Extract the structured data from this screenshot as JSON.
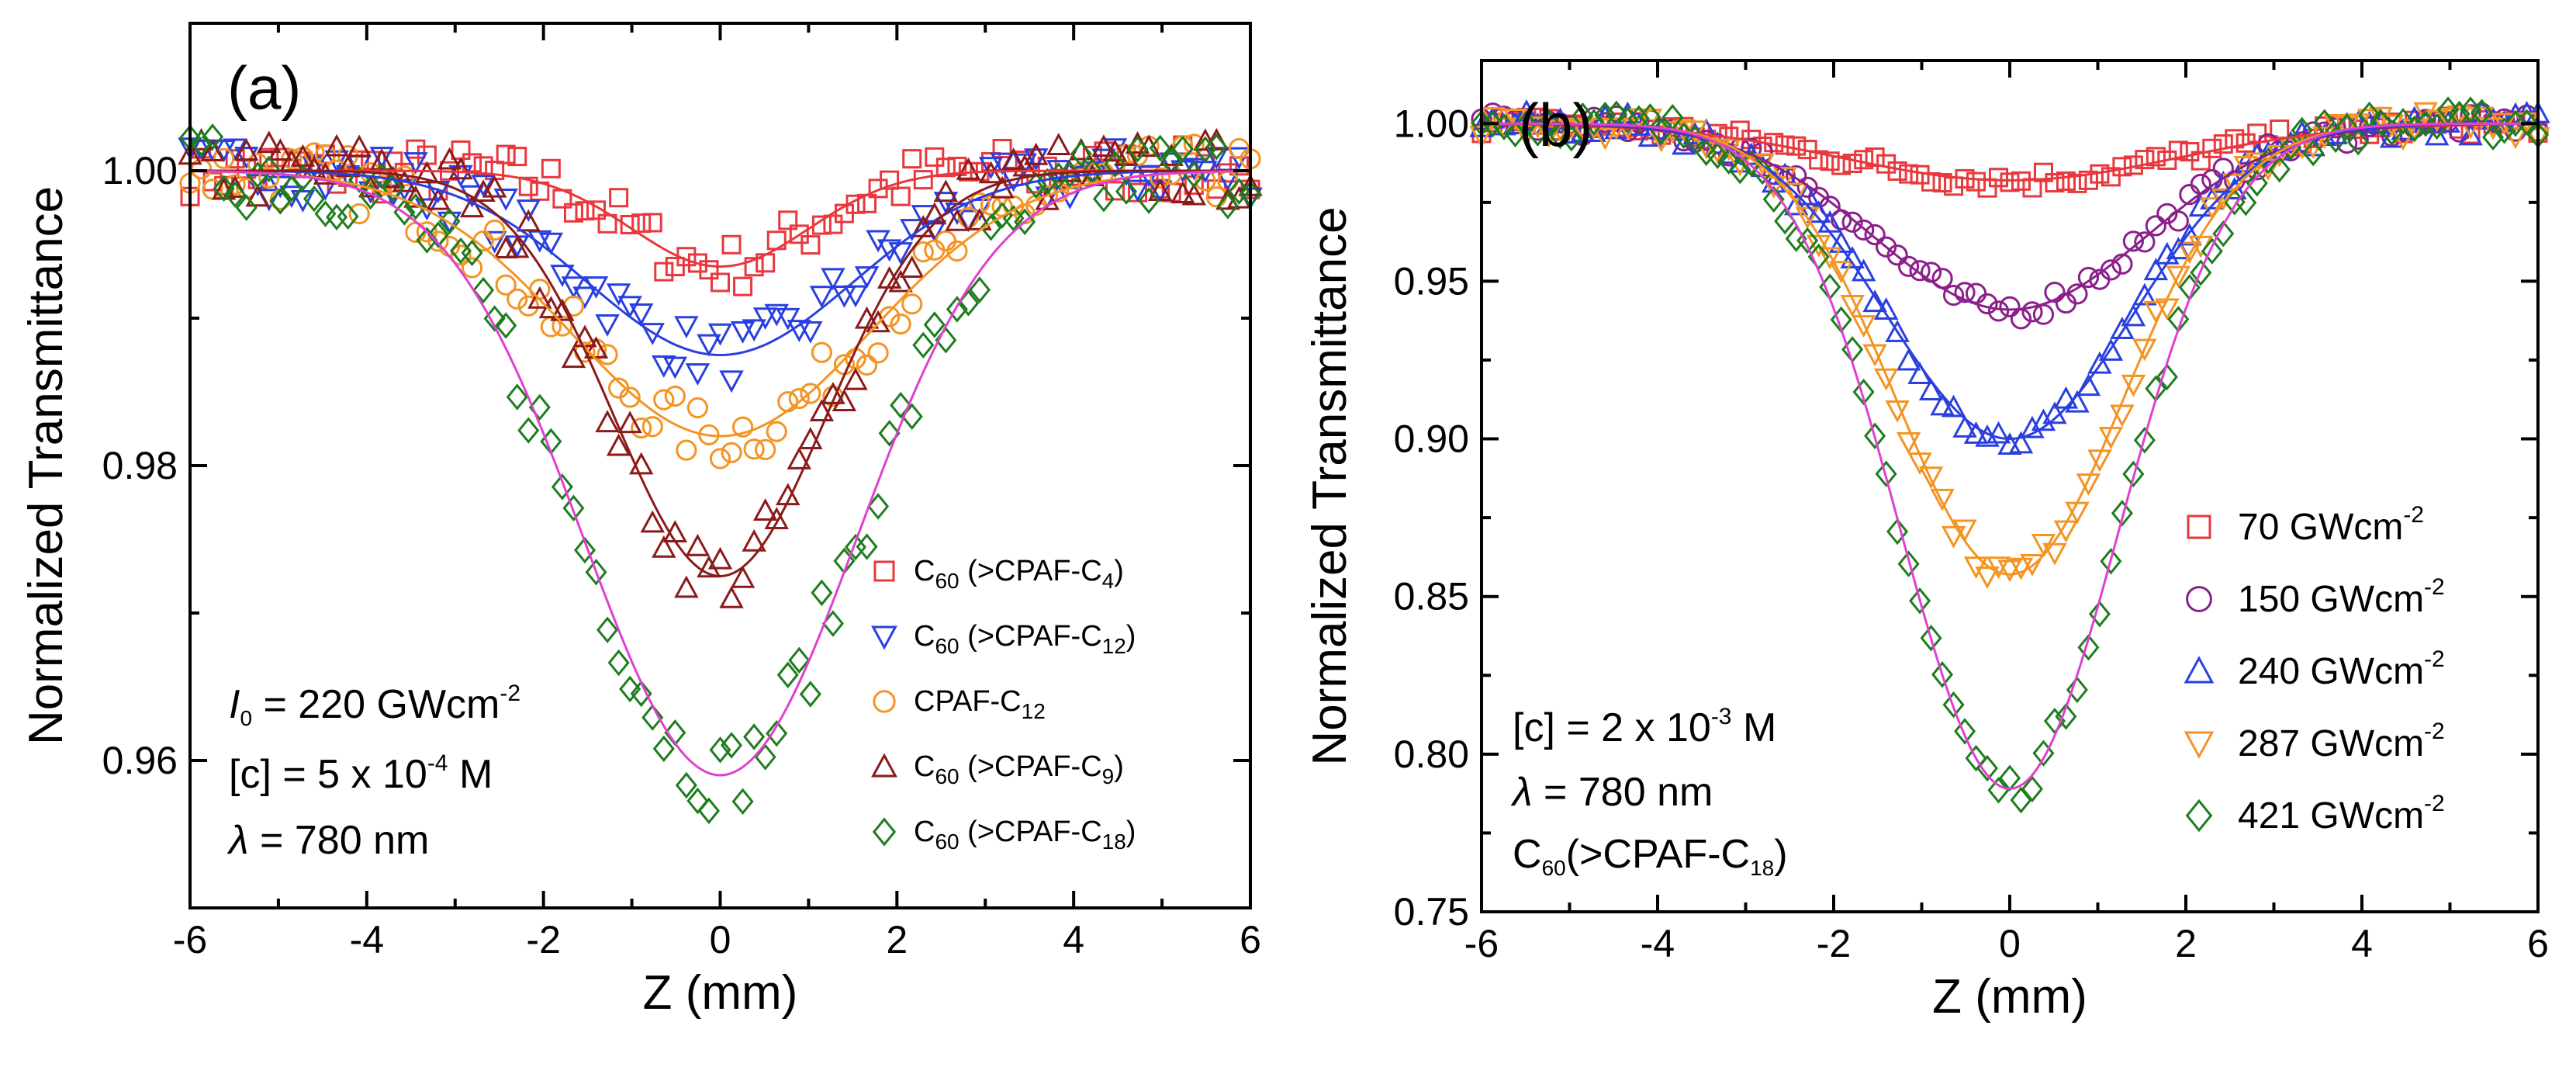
{
  "chart_data": [
    {
      "type": "scatter",
      "panel_label": "(a)",
      "xlabel": "Z (mm)",
      "ylabel": "Normalized Transmittance",
      "xlim": [
        -6,
        6
      ],
      "ylim": [
        0.95,
        1.01
      ],
      "xticks": [
        -6,
        -4,
        -2,
        0,
        2,
        4,
        6
      ],
      "xtick_labels": [
        "-6",
        "-4",
        "-2",
        "0",
        "2",
        "4",
        "6"
      ],
      "yticks": [
        0.96,
        0.98,
        1.0
      ],
      "ytick_labels": [
        "0.96",
        "0.98",
        "1.00"
      ],
      "grid": false,
      "legend_position": "lower-right",
      "annotations": [
        {
          "symbol": "I",
          "sub": "0",
          "text": " = 220 GWcm",
          "sup": "-2"
        },
        {
          "text": "[c] = 5 x 10",
          "sup": "-4",
          "after": " M"
        },
        {
          "symbol": "λ",
          "text": " = 780 nm"
        }
      ],
      "series": [
        {
          "name": "C60 (>CPAF-C4)",
          "label_main": "C",
          "label_sub": "60",
          "label_rest": " (>CPAF-C",
          "label_sub2": "4",
          "label_end": ")",
          "marker": "square",
          "color": "#e8383d",
          "fit_min": 0.9935,
          "fit_width": 1.0
        },
        {
          "name": "C60 (>CPAF-C12)",
          "label_main": "C",
          "label_sub": "60",
          "label_rest": " (>CPAF-C",
          "label_sub2": "12",
          "label_end": ")",
          "marker": "triangle-down",
          "color": "#2a3fe0",
          "fit_min": 0.9875,
          "fit_width": 1.5
        },
        {
          "name": "CPAF-C12",
          "label_main": "CPAF-C",
          "label_sub": "12",
          "label_rest": "",
          "label_sub2": "",
          "label_end": "",
          "marker": "circle",
          "color": "#f39423",
          "fit_min": 0.982,
          "fit_width": 1.7
        },
        {
          "name": "C60 (>CPAF-C9)",
          "label_main": "C",
          "label_sub": "60",
          "label_rest": " (>CPAF-C",
          "label_sub2": "9",
          "label_end": ")",
          "marker": "triangle-up",
          "color": "#8b1a1a",
          "fit_min": 0.9725,
          "fit_width": 1.2
        },
        {
          "name": "C60 (>CPAF-C18)",
          "label_main": "C",
          "label_sub": "60",
          "label_rest": " (>CPAF-C",
          "label_sub2": "18",
          "label_end": ")",
          "marker": "diamond",
          "color": "#1e7d1e",
          "fit_min": 0.959,
          "fit_width": 1.55
        }
      ],
      "fit_colors": [
        "#e8383d",
        "#2a3fe0",
        "#f39423",
        "#8b1a1a",
        "#e040d0"
      ]
    },
    {
      "type": "scatter",
      "panel_label": "(b)",
      "xlabel": "Z (mm)",
      "ylabel": "Normalized Transmittance",
      "xlim": [
        -6,
        6
      ],
      "ylim": [
        0.75,
        1.02
      ],
      "xticks": [
        -6,
        -4,
        -2,
        0,
        2,
        4,
        6
      ],
      "xtick_labels": [
        "-6",
        "-4",
        "-2",
        "0",
        "2",
        "4",
        "6"
      ],
      "yticks": [
        0.75,
        0.8,
        0.85,
        0.9,
        0.95,
        1.0
      ],
      "ytick_labels": [
        "0.75",
        "0.80",
        "0.85",
        "0.90",
        "0.95",
        "1.00"
      ],
      "grid": false,
      "legend_position": "right",
      "annotations": [
        {
          "text": "[c] = 2 x 10",
          "sup": "-3",
          "after": " M"
        },
        {
          "symbol": "λ",
          "text": " = 780 nm"
        },
        {
          "text": "C",
          "sub": "60",
          "after": "(>CPAF-C",
          "sub2": "18",
          "end": ")"
        }
      ],
      "series": [
        {
          "name": "70 GWcm-2",
          "label": "70 GWcm",
          "label_sup": "-2",
          "marker": "square",
          "color": "#e8383d",
          "fit_min": 0.982,
          "fit_width": 1.9
        },
        {
          "name": "150 GWcm-2",
          "label": "150 GWcm",
          "label_sup": "-2",
          "marker": "circle",
          "color": "#8b1f8b",
          "fit_min": 0.941,
          "fit_width": 1.55
        },
        {
          "name": "240 GWcm-2",
          "label": "240 GWcm",
          "label_sup": "-2",
          "marker": "triangle-up",
          "color": "#2a3fe0",
          "fit_min": 0.9,
          "fit_width": 1.4
        },
        {
          "name": "287 GWcm-2",
          "label": "287 GWcm",
          "label_sup": "-2",
          "marker": "triangle-down",
          "color": "#f39423",
          "fit_min": 0.857,
          "fit_width": 1.3
        },
        {
          "name": "421 GWcm-2",
          "label": "421 GWcm",
          "label_sup": "-2",
          "marker": "diamond",
          "color": "#1e7d1e",
          "fit_min": 0.789,
          "fit_width": 1.25
        }
      ],
      "fit_colors": [
        "#e8383d",
        "#8b1f8b",
        "#2a3fe0",
        "#f39423",
        "#e040d0"
      ]
    }
  ]
}
